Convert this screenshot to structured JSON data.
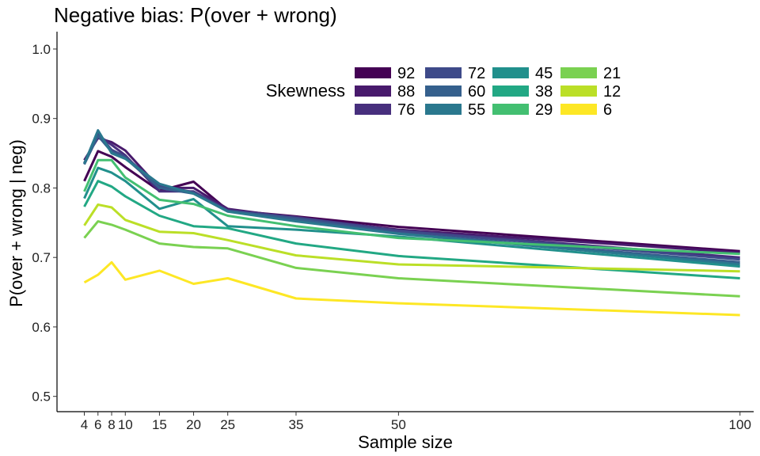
{
  "chart_data": {
    "type": "line",
    "title": "Negative bias: P(over + wrong)",
    "xlabel": "Sample size",
    "ylabel": "P(over + wrong | neg)",
    "xlim": [
      0,
      102
    ],
    "ylim": [
      0.478,
      1.025
    ],
    "x": [
      4,
      6,
      8,
      10,
      15,
      20,
      25,
      35,
      50,
      100
    ],
    "x_ticks": [
      4,
      6,
      8,
      10,
      15,
      20,
      25,
      35,
      50,
      100
    ],
    "y_ticks": [
      0.5,
      0.6,
      0.7,
      0.8,
      0.9,
      1.0
    ],
    "y_tick_labels": [
      "0.5",
      "0.6",
      "0.7",
      "0.8",
      "0.9",
      "1.0"
    ],
    "grid": false,
    "legend": {
      "title": "Skewness",
      "position": "top-center",
      "columns": 4
    },
    "series": [
      {
        "name": "92",
        "color": "#440154",
        "values": [
          0.81,
          0.853,
          0.845,
          0.83,
          0.796,
          0.809,
          0.768,
          0.759,
          0.744,
          0.709
        ]
      },
      {
        "name": "88",
        "color": "#481A6C",
        "values": [
          0.84,
          0.872,
          0.866,
          0.854,
          0.8,
          0.8,
          0.77,
          0.757,
          0.74,
          0.707
        ]
      },
      {
        "name": "76",
        "color": "#472F7D",
        "values": [
          0.835,
          0.876,
          0.862,
          0.847,
          0.795,
          0.795,
          0.768,
          0.758,
          0.739,
          0.7
        ]
      },
      {
        "name": "72",
        "color": "#3E4A89",
        "values": [
          0.836,
          0.878,
          0.855,
          0.845,
          0.803,
          0.794,
          0.767,
          0.757,
          0.738,
          0.697
        ]
      },
      {
        "name": "60",
        "color": "#35608D",
        "values": [
          0.834,
          0.875,
          0.852,
          0.843,
          0.8,
          0.792,
          0.767,
          0.755,
          0.735,
          0.693
        ]
      },
      {
        "name": "55",
        "color": "#2A788E",
        "values": [
          0.835,
          0.883,
          0.85,
          0.842,
          0.806,
          0.792,
          0.766,
          0.752,
          0.734,
          0.69
        ]
      },
      {
        "name": "45",
        "color": "#21908C",
        "values": [
          0.785,
          0.829,
          0.822,
          0.81,
          0.77,
          0.784,
          0.745,
          0.74,
          0.73,
          0.687
        ]
      },
      {
        "name": "38",
        "color": "#22A884",
        "values": [
          0.773,
          0.81,
          0.802,
          0.788,
          0.76,
          0.745,
          0.742,
          0.72,
          0.702,
          0.67
        ]
      },
      {
        "name": "29",
        "color": "#43BF71",
        "values": [
          0.795,
          0.84,
          0.84,
          0.815,
          0.783,
          0.777,
          0.76,
          0.745,
          0.728,
          0.705
        ]
      },
      {
        "name": "21",
        "color": "#7AD151",
        "values": [
          0.728,
          0.752,
          0.747,
          0.74,
          0.72,
          0.715,
          0.713,
          0.685,
          0.67,
          0.644
        ]
      },
      {
        "name": "12",
        "color": "#BBDF27",
        "values": [
          0.746,
          0.776,
          0.772,
          0.754,
          0.737,
          0.735,
          0.725,
          0.703,
          0.69,
          0.68
        ]
      },
      {
        "name": "6",
        "color": "#FDE725",
        "values": [
          0.664,
          0.675,
          0.693,
          0.668,
          0.681,
          0.662,
          0.67,
          0.641,
          0.634,
          0.617
        ]
      }
    ]
  }
}
